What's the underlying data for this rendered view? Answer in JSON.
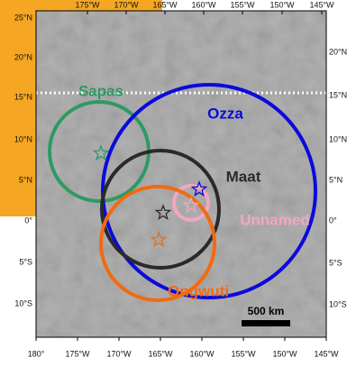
{
  "map": {
    "top_lon_labels": [
      "175°W",
      "170°W",
      "165°W",
      "160°W",
      "155°W",
      "150°W",
      "145°W"
    ],
    "bottom_lon_labels": [
      "180°",
      "175°W",
      "170°W",
      "165°W",
      "160°W",
      "155°W",
      "150°W",
      "145°W"
    ],
    "left_lat_labels": [
      "25°N",
      "20°N",
      "15°N",
      "10°N",
      "5°N",
      "0°",
      "5°S",
      "10°S"
    ],
    "right_lat_labels": [
      "20°N",
      "15°N",
      "10°N",
      "5°N",
      "0°",
      "5°S",
      "10°S"
    ],
    "features": [
      {
        "label": "Sapas"
      },
      {
        "label": "Ozza"
      },
      {
        "label": "Maat"
      },
      {
        "label": "Unnamed"
      },
      {
        "label": "Ongwuti"
      }
    ],
    "scale_bar": "500 km"
  }
}
